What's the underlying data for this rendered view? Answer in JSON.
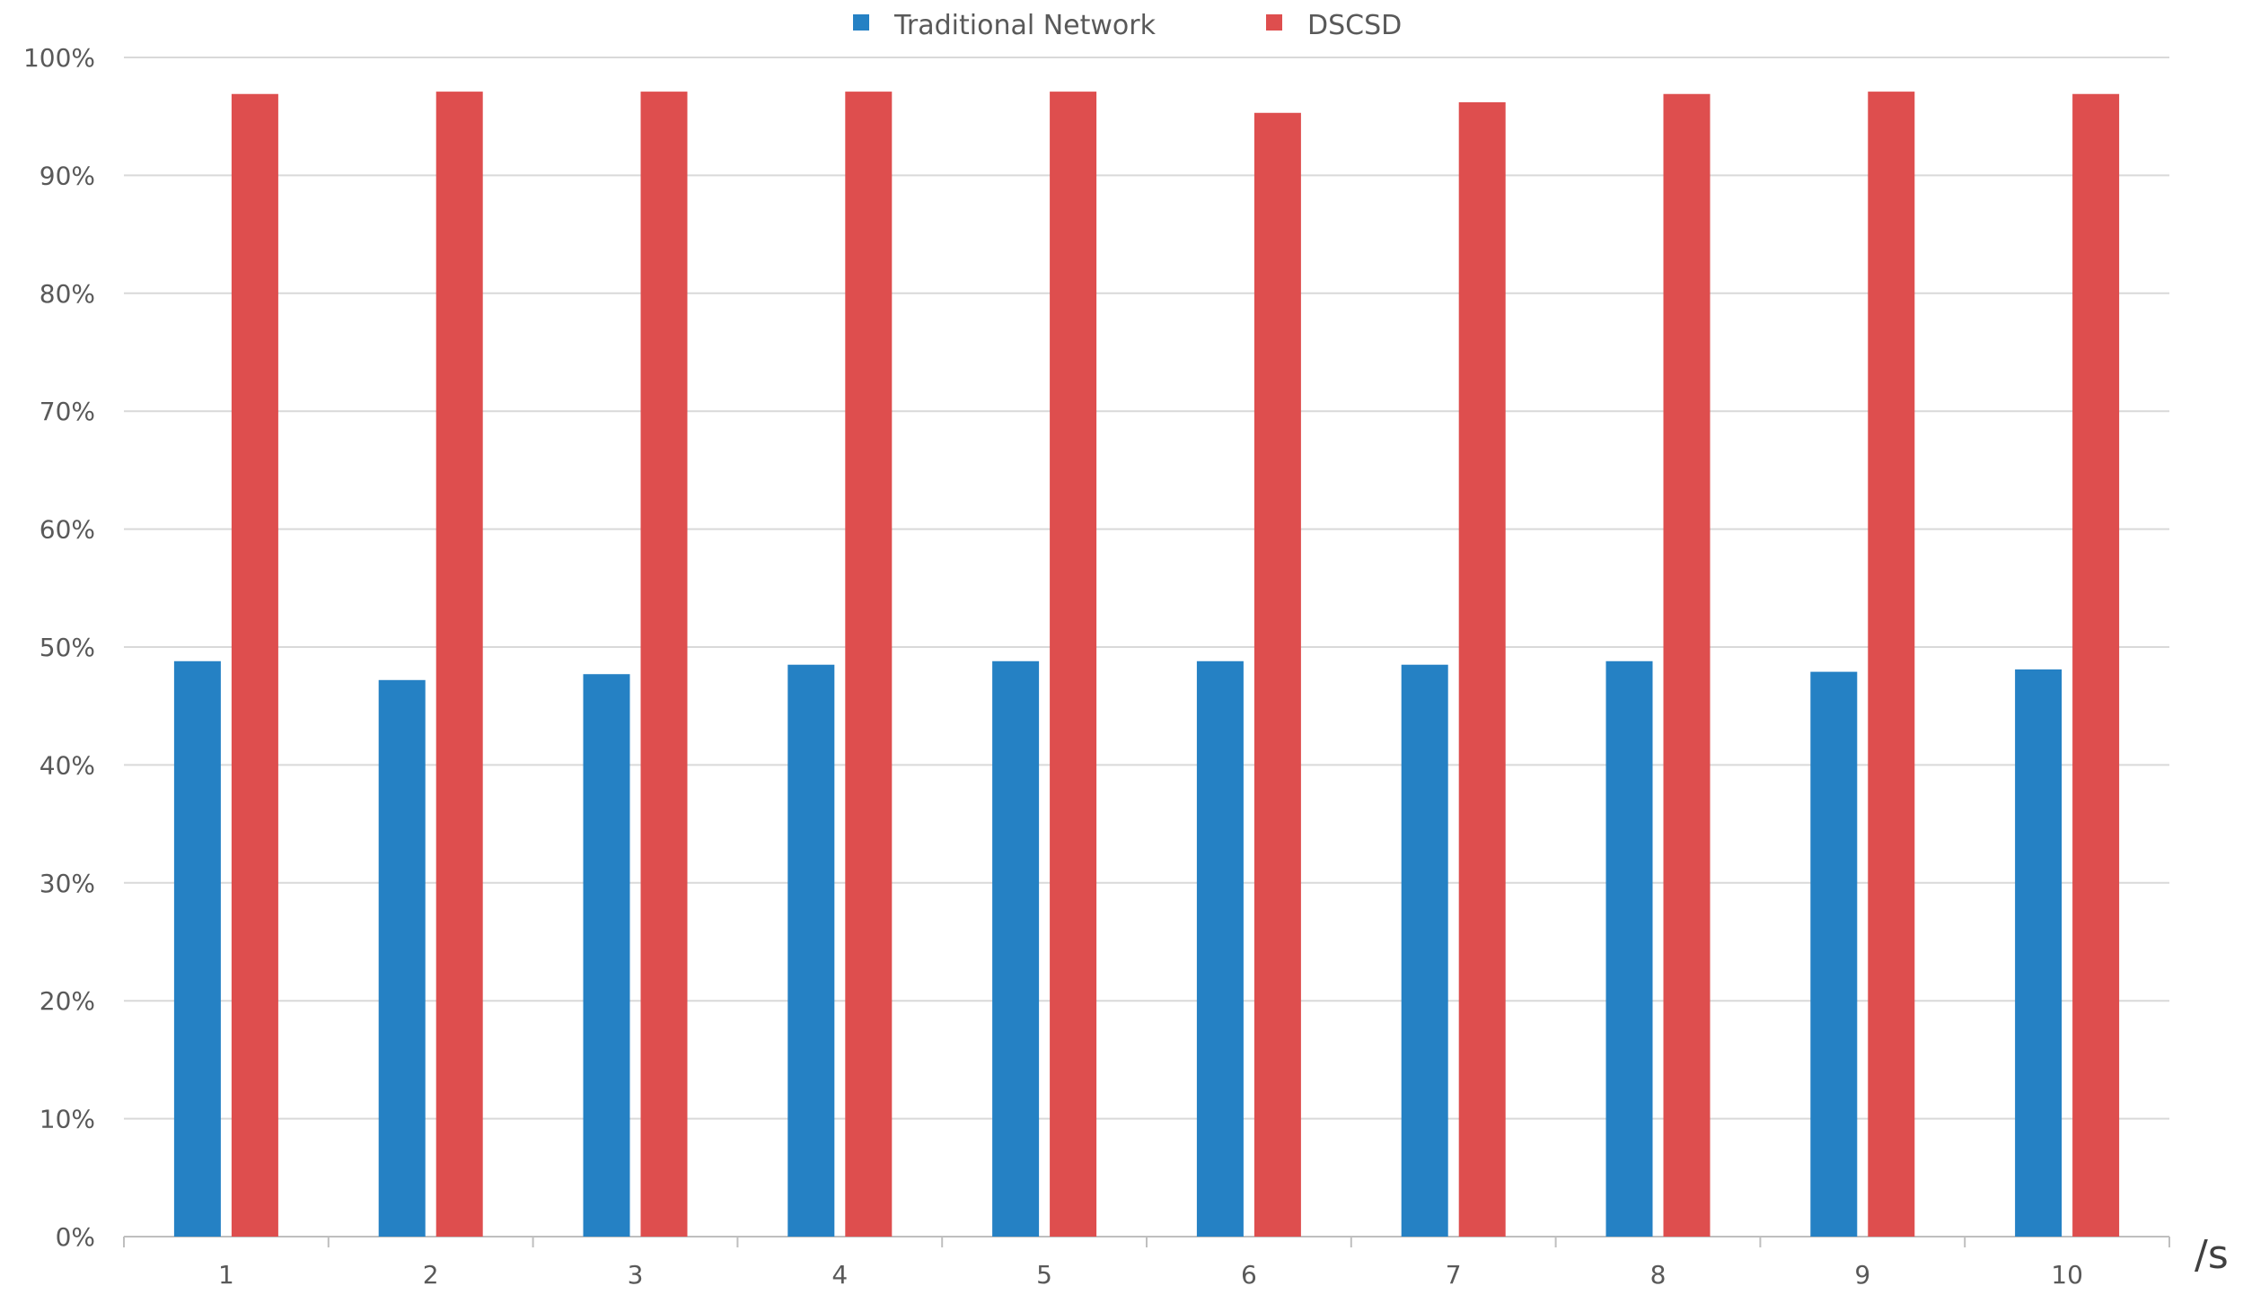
{
  "chart_data": {
    "type": "bar",
    "title": "",
    "xlabel": "/s",
    "ylabel": "",
    "categories": [
      "1",
      "2",
      "3",
      "4",
      "5",
      "6",
      "7",
      "8",
      "9",
      "10"
    ],
    "series": [
      {
        "name": "Traditional Network",
        "color": "#2581C4",
        "values": [
          48.8,
          47.2,
          47.7,
          48.5,
          48.8,
          48.8,
          48.5,
          48.8,
          47.9,
          48.1
        ]
      },
      {
        "name": "DSCSD",
        "color": "#DE4E4E",
        "values": [
          96.9,
          97.1,
          97.1,
          97.1,
          97.1,
          95.3,
          96.2,
          96.9,
          97.1,
          96.9
        ]
      }
    ],
    "ylim": [
      0,
      100
    ],
    "yticks": [
      "0%",
      "10%",
      "20%",
      "30%",
      "40%",
      "50%",
      "60%",
      "70%",
      "80%",
      "90%",
      "100%"
    ],
    "grid": true,
    "legend": "top-center"
  }
}
